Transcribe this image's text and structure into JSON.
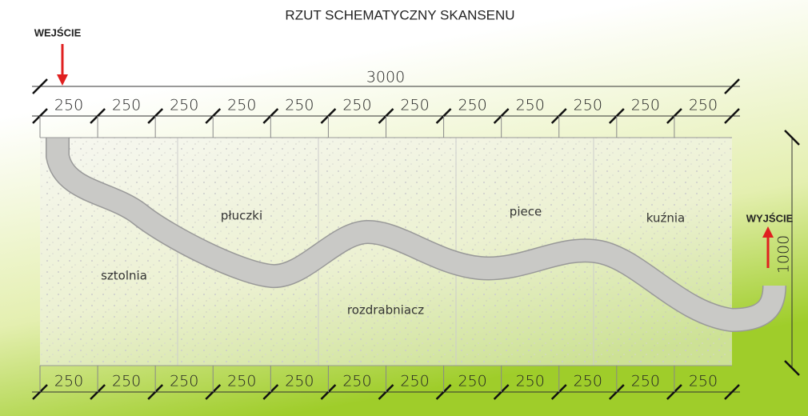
{
  "title": "RZUT SCHEMATYCZNY SKANSENU",
  "entrance": "WEJŚCIE",
  "exit": "WYJŚCIE",
  "total_width": "3000",
  "height": "1000",
  "top_segments": [
    "250",
    "250",
    "250",
    "250",
    "250",
    "250",
    "250",
    "250",
    "250",
    "250",
    "250",
    "250"
  ],
  "bottom_segments": [
    "250",
    "250",
    "250",
    "250",
    "250",
    "250",
    "250",
    "250",
    "250",
    "250",
    "250",
    "250"
  ],
  "zones": [
    "sztolnia",
    "płuczki",
    "rozdrabniacz",
    "piece",
    "kuźnia"
  ]
}
